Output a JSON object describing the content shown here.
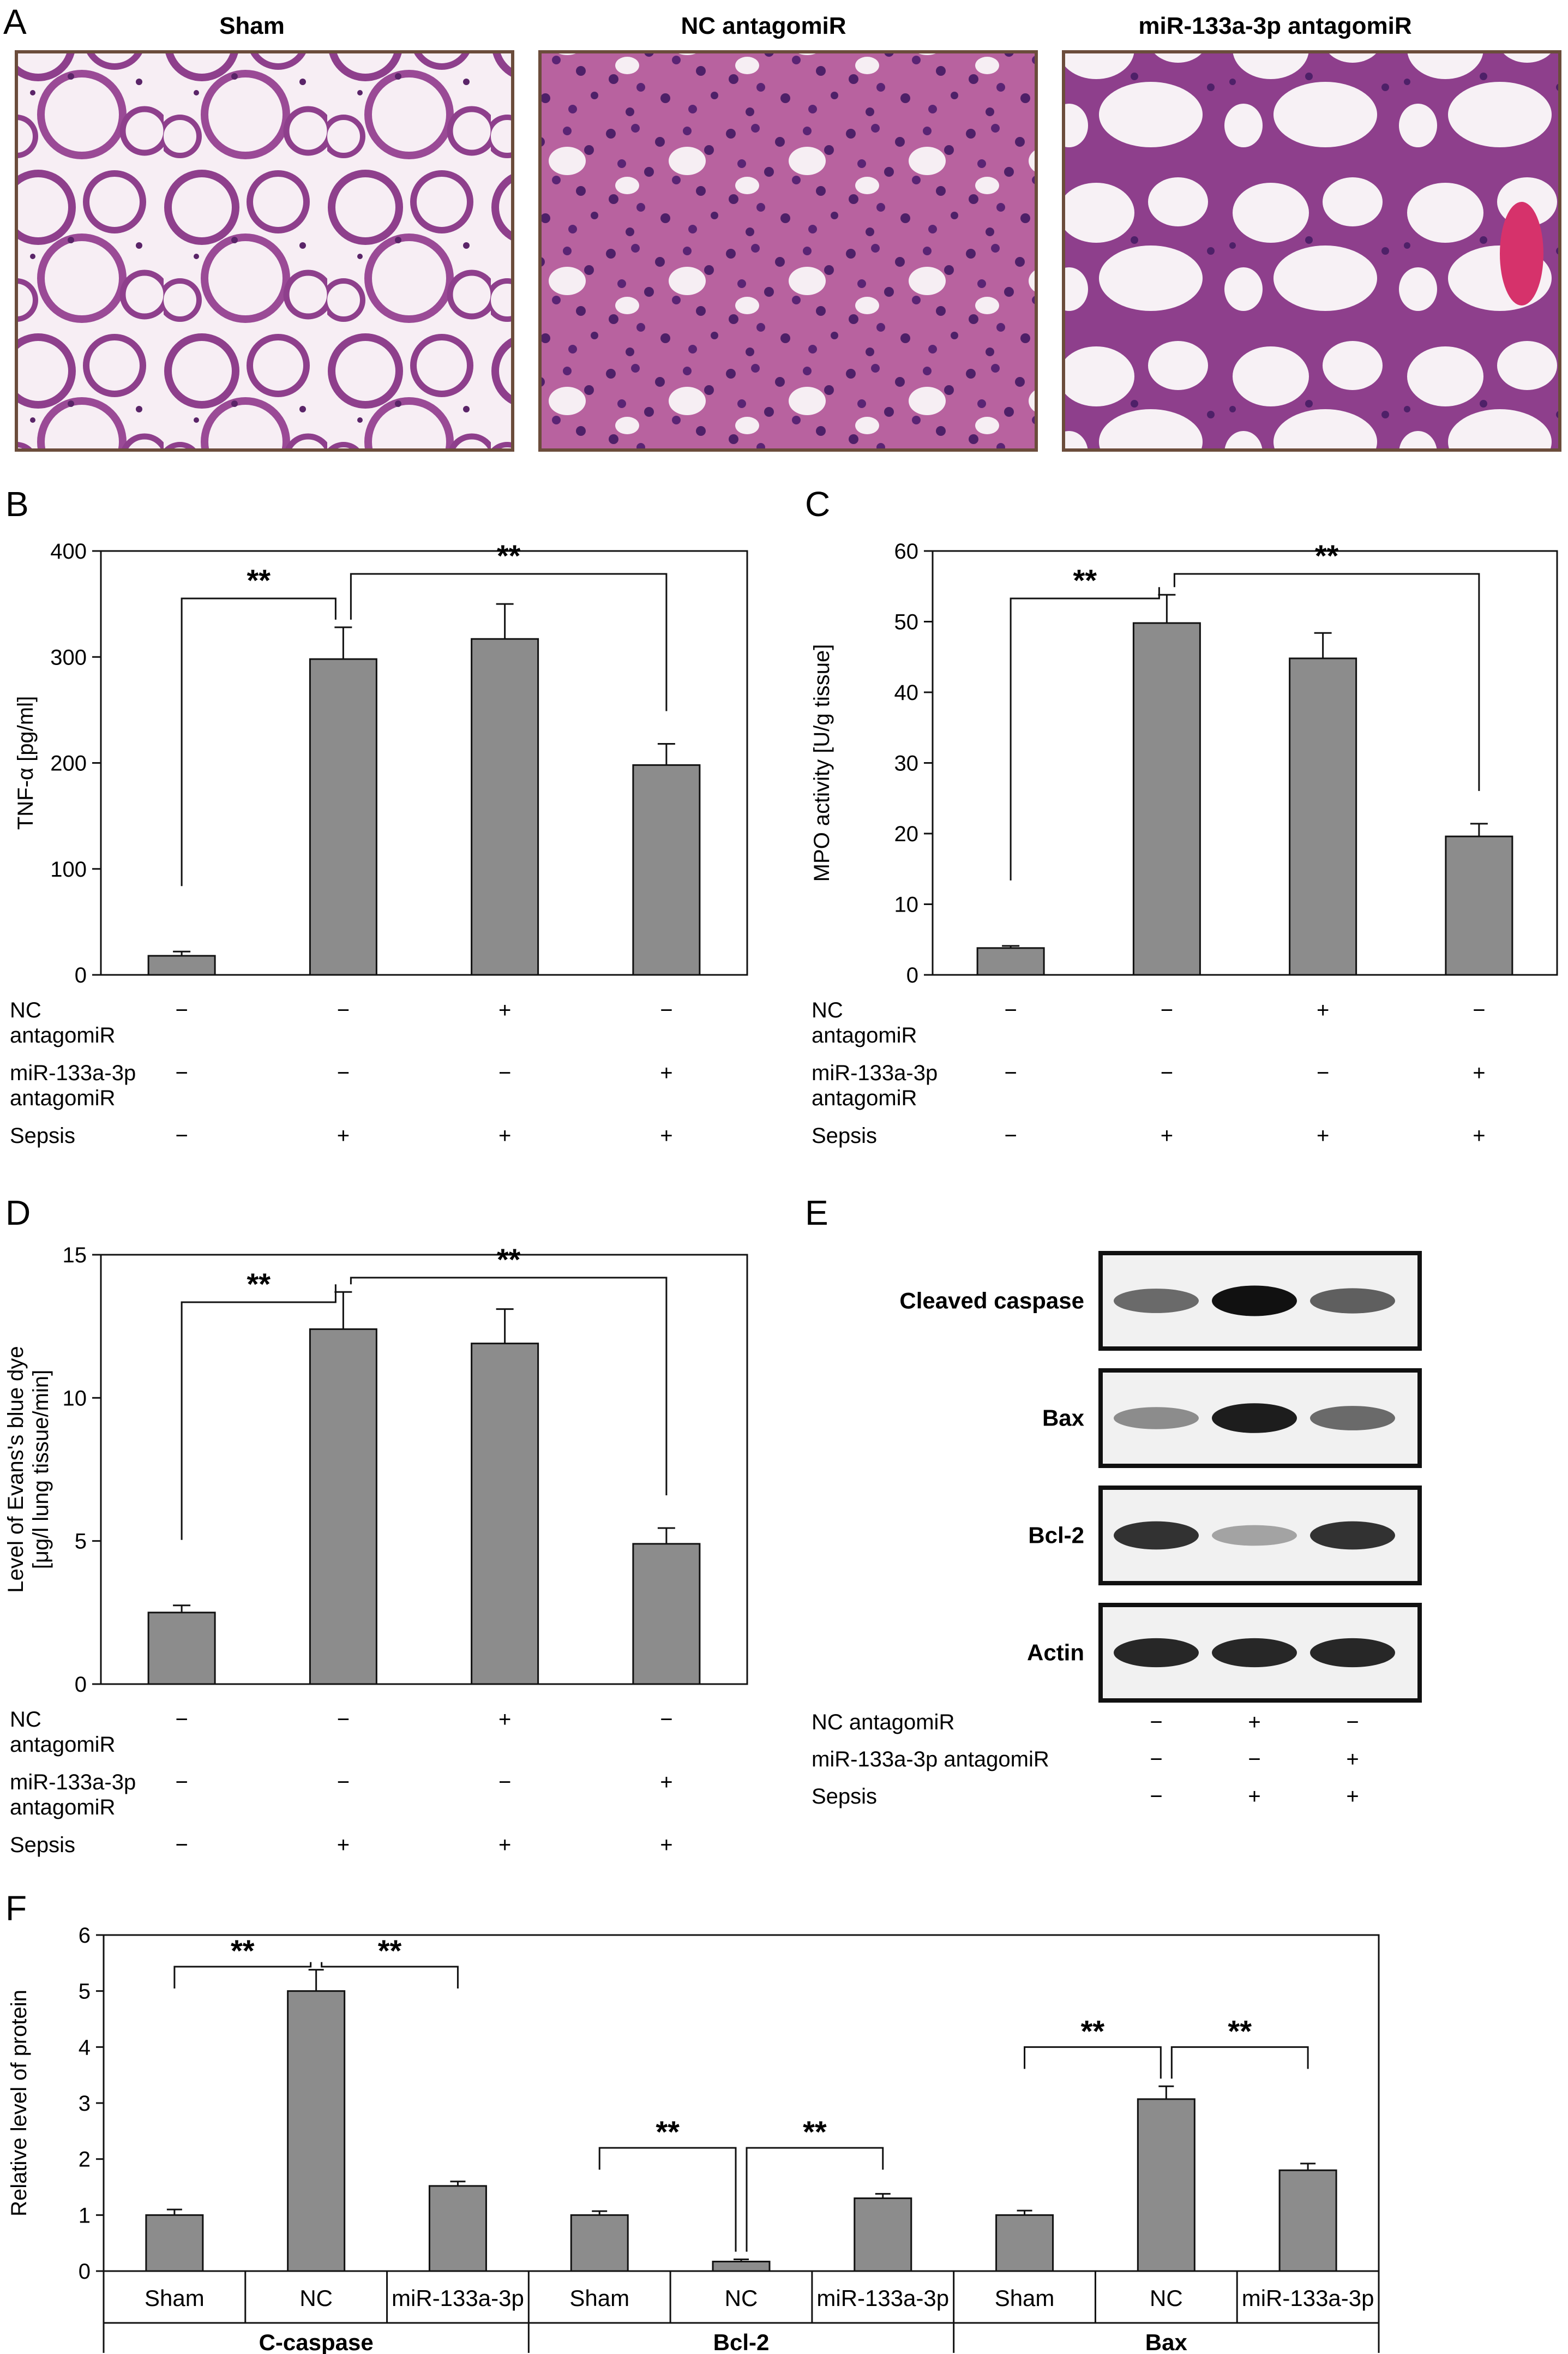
{
  "panels": {
    "A": {
      "label": "A",
      "images": [
        {
          "title": "Sham"
        },
        {
          "title": "NC antagomiR"
        },
        {
          "title": "miR-133a-3p antagomiR"
        }
      ]
    },
    "E": {
      "label": "E",
      "blots": [
        "Cleaved caspase",
        "Bax",
        "Bcl-2",
        "Actin"
      ],
      "band_intensity": {
        "Cleaved caspase": [
          0.6,
          1.0,
          0.65
        ],
        "Bax": [
          0.45,
          0.95,
          0.6
        ],
        "Bcl-2": [
          0.85,
          0.35,
          0.85
        ],
        "Actin": [
          0.9,
          0.9,
          0.9
        ]
      },
      "treatments": [
        {
          "label": "NC antagomiR",
          "signs": [
            "−",
            "+",
            "−"
          ]
        },
        {
          "label": "miR-133a-3p antagomiR",
          "signs": [
            "−",
            "−",
            "+"
          ]
        },
        {
          "label": "Sepsis",
          "signs": [
            "−",
            "+",
            "+"
          ]
        }
      ]
    }
  },
  "chart_data": [
    {
      "id": "B",
      "label": "B",
      "type": "bar",
      "ylabel": "TNF-α [pg/ml]",
      "ylim": [
        0,
        400
      ],
      "yticks": [
        0,
        100,
        200,
        300,
        400
      ],
      "values": [
        18,
        298,
        317,
        198
      ],
      "errors": [
        4,
        30,
        33,
        20
      ],
      "significance": [
        {
          "from": 0,
          "to": 1,
          "label": "**"
        },
        {
          "from": 1,
          "to": 3,
          "label": "**"
        }
      ],
      "treatments": [
        {
          "label_lines": [
            "NC",
            "antagomiR"
          ],
          "signs": [
            "−",
            "−",
            "+",
            "−"
          ]
        },
        {
          "label_lines": [
            "miR-133a-3p",
            "antagomiR"
          ],
          "signs": [
            "−",
            "−",
            "−",
            "+"
          ]
        },
        {
          "label_lines": [
            "Sepsis"
          ],
          "signs": [
            "−",
            "+",
            "+",
            "+"
          ]
        }
      ]
    },
    {
      "id": "C",
      "label": "C",
      "type": "bar",
      "ylabel": "MPO activity [U/g tissue]",
      "ylim": [
        0,
        60
      ],
      "yticks": [
        0,
        10,
        20,
        30,
        40,
        50,
        60
      ],
      "values": [
        3.8,
        49.8,
        44.8,
        19.6
      ],
      "errors": [
        0.3,
        4,
        3.6,
        1.8
      ],
      "significance": [
        {
          "from": 0,
          "to": 1,
          "label": "**"
        },
        {
          "from": 1,
          "to": 3,
          "label": "**"
        }
      ],
      "treatments": [
        {
          "label_lines": [
            "NC",
            "antagomiR"
          ],
          "signs": [
            "−",
            "−",
            "+",
            "−"
          ]
        },
        {
          "label_lines": [
            "miR-133a-3p",
            "antagomiR"
          ],
          "signs": [
            "−",
            "−",
            "−",
            "+"
          ]
        },
        {
          "label_lines": [
            "Sepsis"
          ],
          "signs": [
            "−",
            "+",
            "+",
            "+"
          ]
        }
      ]
    },
    {
      "id": "D",
      "label": "D",
      "type": "bar",
      "ylabel_lines": [
        "Level of Evans's blue dye",
        "[μg/l lung tissue/min]"
      ],
      "ylim": [
        0,
        15
      ],
      "yticks": [
        0,
        5,
        10,
        15
      ],
      "values": [
        2.5,
        12.4,
        11.9,
        4.9
      ],
      "errors": [
        0.25,
        1.3,
        1.2,
        0.55
      ],
      "significance": [
        {
          "from": 0,
          "to": 1,
          "label": "**"
        },
        {
          "from": 1,
          "to": 3,
          "label": "**"
        }
      ],
      "treatments": [
        {
          "label_lines": [
            "NC",
            "antagomiR"
          ],
          "signs": [
            "−",
            "−",
            "+",
            "−"
          ]
        },
        {
          "label_lines": [
            "miR-133a-3p",
            "antagomiR"
          ],
          "signs": [
            "−",
            "−",
            "−",
            "+"
          ]
        },
        {
          "label_lines": [
            "Sepsis"
          ],
          "signs": [
            "−",
            "+",
            "+",
            "+"
          ]
        }
      ]
    },
    {
      "id": "F",
      "label": "F",
      "type": "bar",
      "ylabel": "Relative level of protein",
      "ylim": [
        0,
        6
      ],
      "yticks": [
        0,
        1,
        2,
        3,
        4,
        5,
        6
      ],
      "categories": [
        "Sham",
        "NC",
        "miR-133a-3p",
        "Sham",
        "NC",
        "miR-133a-3p",
        "Sham",
        "NC",
        "miR-133a-3p"
      ],
      "groups": [
        "C-caspase",
        "Bcl-2",
        "Bax"
      ],
      "values": [
        1.0,
        5.0,
        1.52,
        1.0,
        0.17,
        1.3,
        1.0,
        3.07,
        1.8
      ],
      "errors": [
        0.1,
        0.38,
        0.08,
        0.07,
        0.04,
        0.08,
        0.08,
        0.23,
        0.12
      ],
      "significance": [
        {
          "from": 0,
          "to": 1,
          "label": "**"
        },
        {
          "from": 1,
          "to": 2,
          "label": "**"
        },
        {
          "from": 3,
          "to": 4,
          "label": "**"
        },
        {
          "from": 4,
          "to": 5,
          "label": "**"
        },
        {
          "from": 6,
          "to": 7,
          "label": "**"
        },
        {
          "from": 7,
          "to": 8,
          "label": "**"
        }
      ]
    }
  ],
  "colors": {
    "bar": "#8c8c8c",
    "stroke": "#111111",
    "frame": "#6b4c3b",
    "tissue": "#8e3f8c",
    "pink": "#e9a9c9",
    "blot_bg": "#f1f1f1"
  }
}
